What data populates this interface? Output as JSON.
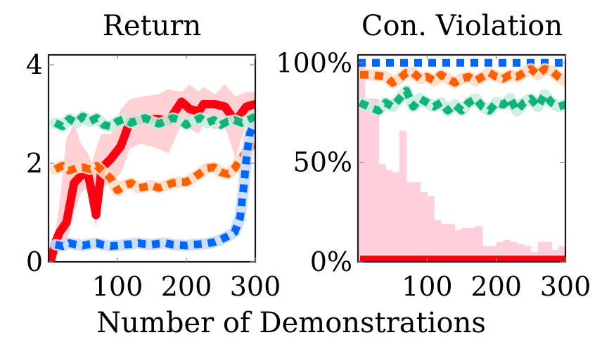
{
  "chart_data": [
    {
      "type": "line",
      "title": "Return",
      "xlabel": "Number of Demonstrations",
      "ylabel": "",
      "xlim": [
        0,
        300
      ],
      "ylim": [
        0,
        4.2
      ],
      "xticks": [
        100,
        200,
        300
      ],
      "xtick_labels": [
        "100",
        "200",
        "300"
      ],
      "yticks": [
        0,
        2,
        4
      ],
      "ytick_labels": [
        "0",
        "2",
        "4"
      ],
      "grid": false,
      "series": [
        {
          "name": "red-solid",
          "color": "#FF0010",
          "style": "solid",
          "band_color": "#FFC8CC",
          "x": [
            3,
            10,
            16,
            26,
            37,
            47,
            57,
            63,
            69,
            77,
            91,
            105,
            118,
            134,
            159,
            174,
            193,
            205,
            218,
            225,
            241,
            256,
            271,
            287,
            300
          ],
          "y": [
            0.0,
            0.4,
            0.6,
            0.8,
            1.6,
            1.75,
            1.8,
            1.4,
            0.95,
            1.9,
            2.1,
            2.35,
            2.85,
            2.88,
            2.9,
            2.85,
            3.25,
            3.1,
            3.05,
            3.2,
            3.2,
            3.15,
            2.85,
            3.15,
            3.2
          ],
          "band_upper": [
            0.2,
            0.6,
            1.2,
            2.5,
            2.8,
            2.4,
            2.2,
            2.0,
            2.3,
            2.6,
            2.6,
            3.1,
            3.3,
            3.35,
            3.4,
            3.5,
            3.45,
            3.6,
            3.45,
            3.55,
            3.4,
            3.6,
            3.35,
            3.45,
            3.45
          ],
          "band_lower": [
            0.0,
            0.1,
            0.2,
            0.4,
            1.0,
            1.4,
            1.5,
            1.0,
            0.7,
            1.5,
            1.6,
            1.8,
            2.3,
            2.4,
            2.3,
            2.2,
            2.8,
            2.7,
            2.6,
            2.8,
            2.7,
            2.75,
            2.1,
            2.8,
            2.9
          ]
        },
        {
          "name": "green-dashed",
          "color": "#10B479",
          "style": "dashed",
          "band_color": "#C9EDDF",
          "x": [
            10,
            20,
            30,
            40,
            50,
            60,
            70,
            80,
            90,
            100,
            110,
            120,
            130,
            140,
            150,
            160,
            170,
            180,
            190,
            200,
            210,
            220,
            230,
            240,
            250,
            260,
            270,
            280,
            290,
            300
          ],
          "y": [
            2.82,
            2.75,
            2.9,
            2.82,
            2.95,
            2.85,
            2.92,
            2.78,
            2.75,
            2.85,
            2.9,
            2.82,
            2.88,
            2.92,
            2.85,
            2.8,
            2.85,
            2.92,
            2.88,
            2.78,
            2.85,
            2.92,
            2.82,
            2.88,
            2.78,
            2.85,
            2.88,
            2.82,
            2.88,
            2.95
          ]
        },
        {
          "name": "orange-dashed",
          "color": "#FF5F00",
          "style": "dashed",
          "band_color": "#FFDCC8",
          "x": [
            10,
            20,
            30,
            40,
            50,
            60,
            70,
            80,
            90,
            100,
            110,
            120,
            130,
            140,
            150,
            160,
            170,
            180,
            190,
            200,
            210,
            220,
            230,
            240,
            250,
            260,
            270,
            280,
            290,
            300
          ],
          "y": [
            1.88,
            1.95,
            1.85,
            1.9,
            1.92,
            1.88,
            1.95,
            1.82,
            1.7,
            1.45,
            1.55,
            1.6,
            1.5,
            1.52,
            1.55,
            1.5,
            1.55,
            1.6,
            1.62,
            1.62,
            1.7,
            1.8,
            1.9,
            1.92,
            1.82,
            1.78,
            1.9,
            2.1,
            2.3,
            2.4
          ]
        },
        {
          "name": "blue-dotted",
          "color": "#0066FF",
          "style": "dotted",
          "band_color": "#C8DCFA",
          "x": [
            10,
            20,
            30,
            40,
            50,
            60,
            70,
            80,
            90,
            100,
            110,
            120,
            130,
            140,
            150,
            160,
            170,
            180,
            190,
            200,
            210,
            220,
            230,
            240,
            250,
            260,
            270,
            278,
            283,
            288,
            292,
            296,
            300
          ],
          "y": [
            0.35,
            0.32,
            0.38,
            0.35,
            0.33,
            0.36,
            0.38,
            0.34,
            0.32,
            0.33,
            0.35,
            0.36,
            0.38,
            0.36,
            0.35,
            0.37,
            0.38,
            0.35,
            0.34,
            0.33,
            0.35,
            0.36,
            0.37,
            0.4,
            0.45,
            0.52,
            0.6,
            0.9,
            1.5,
            2.2,
            2.6,
            2.72,
            2.7
          ]
        }
      ]
    },
    {
      "type": "bar+line",
      "title": "Con. Violation",
      "xlabel": "Number of Demonstrations",
      "ylabel": "",
      "xlim": [
        0,
        300
      ],
      "ylim": [
        0,
        104
      ],
      "xticks": [
        100,
        200,
        300
      ],
      "xtick_labels": [
        "100",
        "200",
        "300"
      ],
      "yticks": [
        0,
        50,
        100
      ],
      "ytick_labels": [
        "0%",
        "50%",
        "100%"
      ],
      "grid": false,
      "bars": {
        "name": "pink-histogram",
        "color": "#FFD0DC",
        "bin_edges": [
          0,
          10,
          30,
          40,
          50,
          60,
          70,
          80,
          90,
          100,
          110,
          120,
          130,
          140,
          150,
          160,
          170,
          180,
          190,
          200,
          210,
          220,
          230,
          240,
          250,
          260,
          270,
          280,
          290,
          300
        ],
        "values": [
          100,
          82,
          49,
          46,
          45,
          66,
          40,
          40,
          35,
          33,
          21,
          19,
          19,
          16,
          17,
          17,
          18,
          8,
          8,
          10,
          11,
          10,
          9,
          8,
          5,
          10,
          10,
          6,
          8
        ]
      },
      "series": [
        {
          "name": "blue-dotted",
          "color": "#0066FF",
          "style": "dotted",
          "x": [
            0,
            300
          ],
          "y": [
            100,
            100
          ]
        },
        {
          "name": "orange-dashed",
          "color": "#FF5F00",
          "style": "dashed",
          "band_color": "#FFDCC8",
          "x": [
            3,
            20,
            40,
            50,
            60,
            70,
            80,
            90,
            100,
            110,
            120,
            130,
            140,
            150,
            160,
            170,
            180,
            190,
            200,
            210,
            220,
            230,
            240,
            250,
            260,
            270,
            280,
            290,
            300
          ],
          "y": [
            94,
            94,
            93,
            90,
            92,
            95,
            95,
            92,
            93,
            91,
            94,
            92,
            90,
            92,
            93,
            91,
            93,
            95,
            93,
            92,
            94,
            93,
            95,
            97,
            94,
            97,
            96,
            93,
            91
          ]
        },
        {
          "name": "green-dashed",
          "color": "#10B479",
          "style": "dashed",
          "band_color": "#C9EDDF",
          "x": [
            3,
            15,
            30,
            40,
            50,
            60,
            70,
            80,
            90,
            100,
            110,
            120,
            130,
            140,
            150,
            160,
            170,
            180,
            190,
            200,
            210,
            220,
            230,
            240,
            250,
            260,
            270,
            280,
            290,
            300
          ],
          "y": [
            80,
            78,
            76,
            80,
            78,
            82,
            86,
            78,
            82,
            80,
            78,
            80,
            76,
            79,
            76,
            80,
            82,
            78,
            76,
            80,
            79,
            82,
            76,
            80,
            82,
            78,
            84,
            80,
            78,
            79
          ]
        },
        {
          "name": "red-solid",
          "color": "#FF0010",
          "style": "solid",
          "x": [
            3,
            300
          ],
          "y": [
            1.3,
            1.3
          ]
        }
      ]
    }
  ],
  "panels": {
    "left_title": "Return",
    "right_title": "Con. Violation",
    "shared_xlabel": "Number of Demonstrations"
  }
}
